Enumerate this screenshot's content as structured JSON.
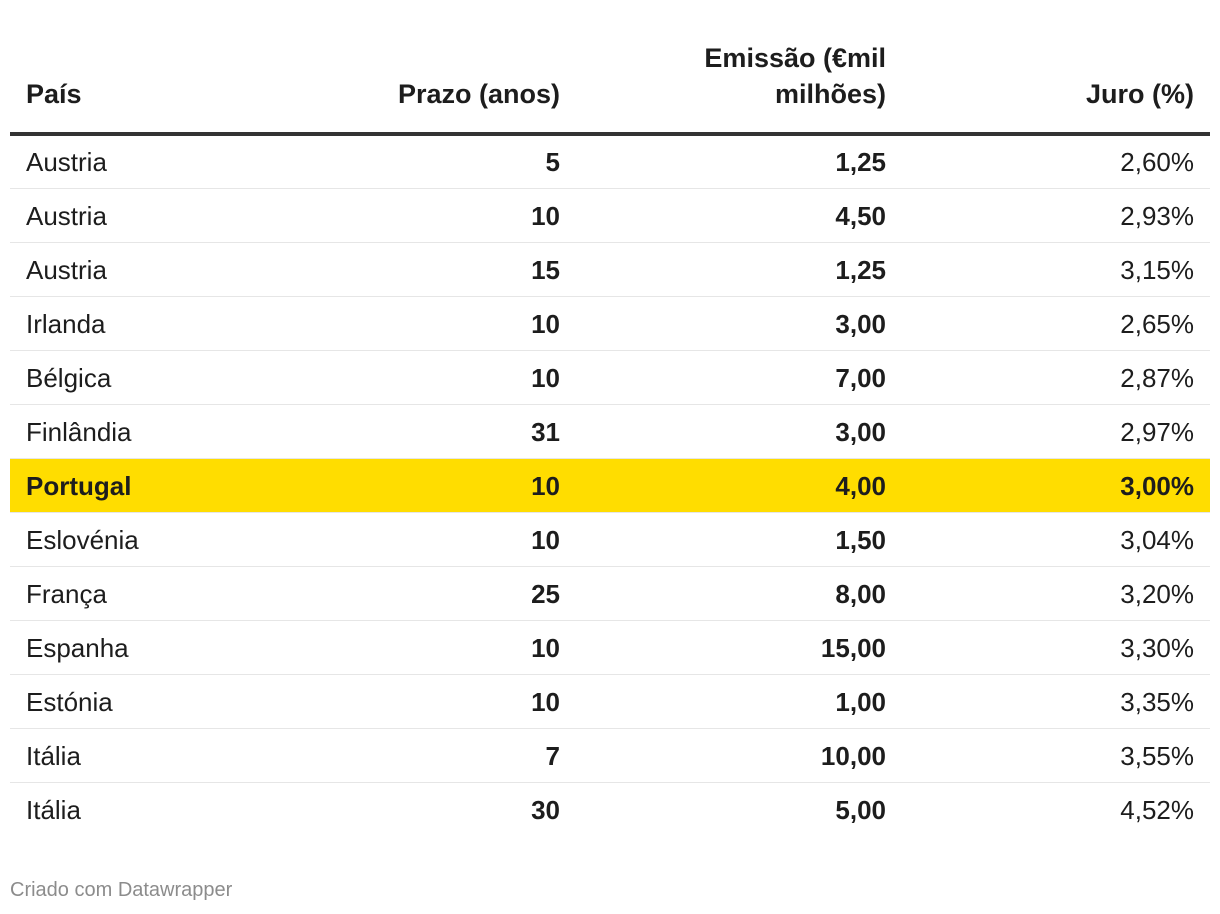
{
  "chart_data": {
    "type": "table",
    "columns": [
      "País",
      "Prazo (anos)",
      "Emissão (€mil milhões)",
      "Juro (%)"
    ],
    "header_lines": {
      "country": "País",
      "term": "Prazo (anos)",
      "issuance_line1": "Emissão (€mil",
      "issuance_line2": "milhões)",
      "rate": "Juro (%)"
    },
    "rows": [
      {
        "country": "Austria",
        "term": "5",
        "issuance": "1,25",
        "rate": "2,60%"
      },
      {
        "country": "Austria",
        "term": "10",
        "issuance": "4,50",
        "rate": "2,93%"
      },
      {
        "country": "Austria",
        "term": "15",
        "issuance": "1,25",
        "rate": "3,15%"
      },
      {
        "country": "Irlanda",
        "term": "10",
        "issuance": "3,00",
        "rate": "2,65%"
      },
      {
        "country": "Bélgica",
        "term": "10",
        "issuance": "7,00",
        "rate": "2,87%"
      },
      {
        "country": "Finlândia",
        "term": "31",
        "issuance": "3,00",
        "rate": "2,97%"
      },
      {
        "country": "Portugal",
        "term": "10",
        "issuance": "4,00",
        "rate": "3,00%",
        "highlighted": true
      },
      {
        "country": "Eslovénia",
        "term": "10",
        "issuance": "1,50",
        "rate": "3,04%"
      },
      {
        "country": "França",
        "term": "25",
        "issuance": "8,00",
        "rate": "3,20%"
      },
      {
        "country": "Espanha",
        "term": "10",
        "issuance": "15,00",
        "rate": "3,30%"
      },
      {
        "country": "Estónia",
        "term": "10",
        "issuance": "1,00",
        "rate": "3,35%"
      },
      {
        "country": "Itália",
        "term": "7",
        "issuance": "10,00",
        "rate": "3,55%"
      },
      {
        "country": "Itália",
        "term": "30",
        "issuance": "5,00",
        "rate": "4,52%"
      }
    ],
    "highlight_color": "#ffdd00"
  },
  "footer": {
    "credit": "Criado com Datawrapper"
  },
  "colors": {
    "text": "#1d1d1d",
    "header_rule": "#333333",
    "row_divider": "#e6e6e6",
    "footer_text": "#8c8c8c",
    "highlight": "#ffdd00"
  }
}
